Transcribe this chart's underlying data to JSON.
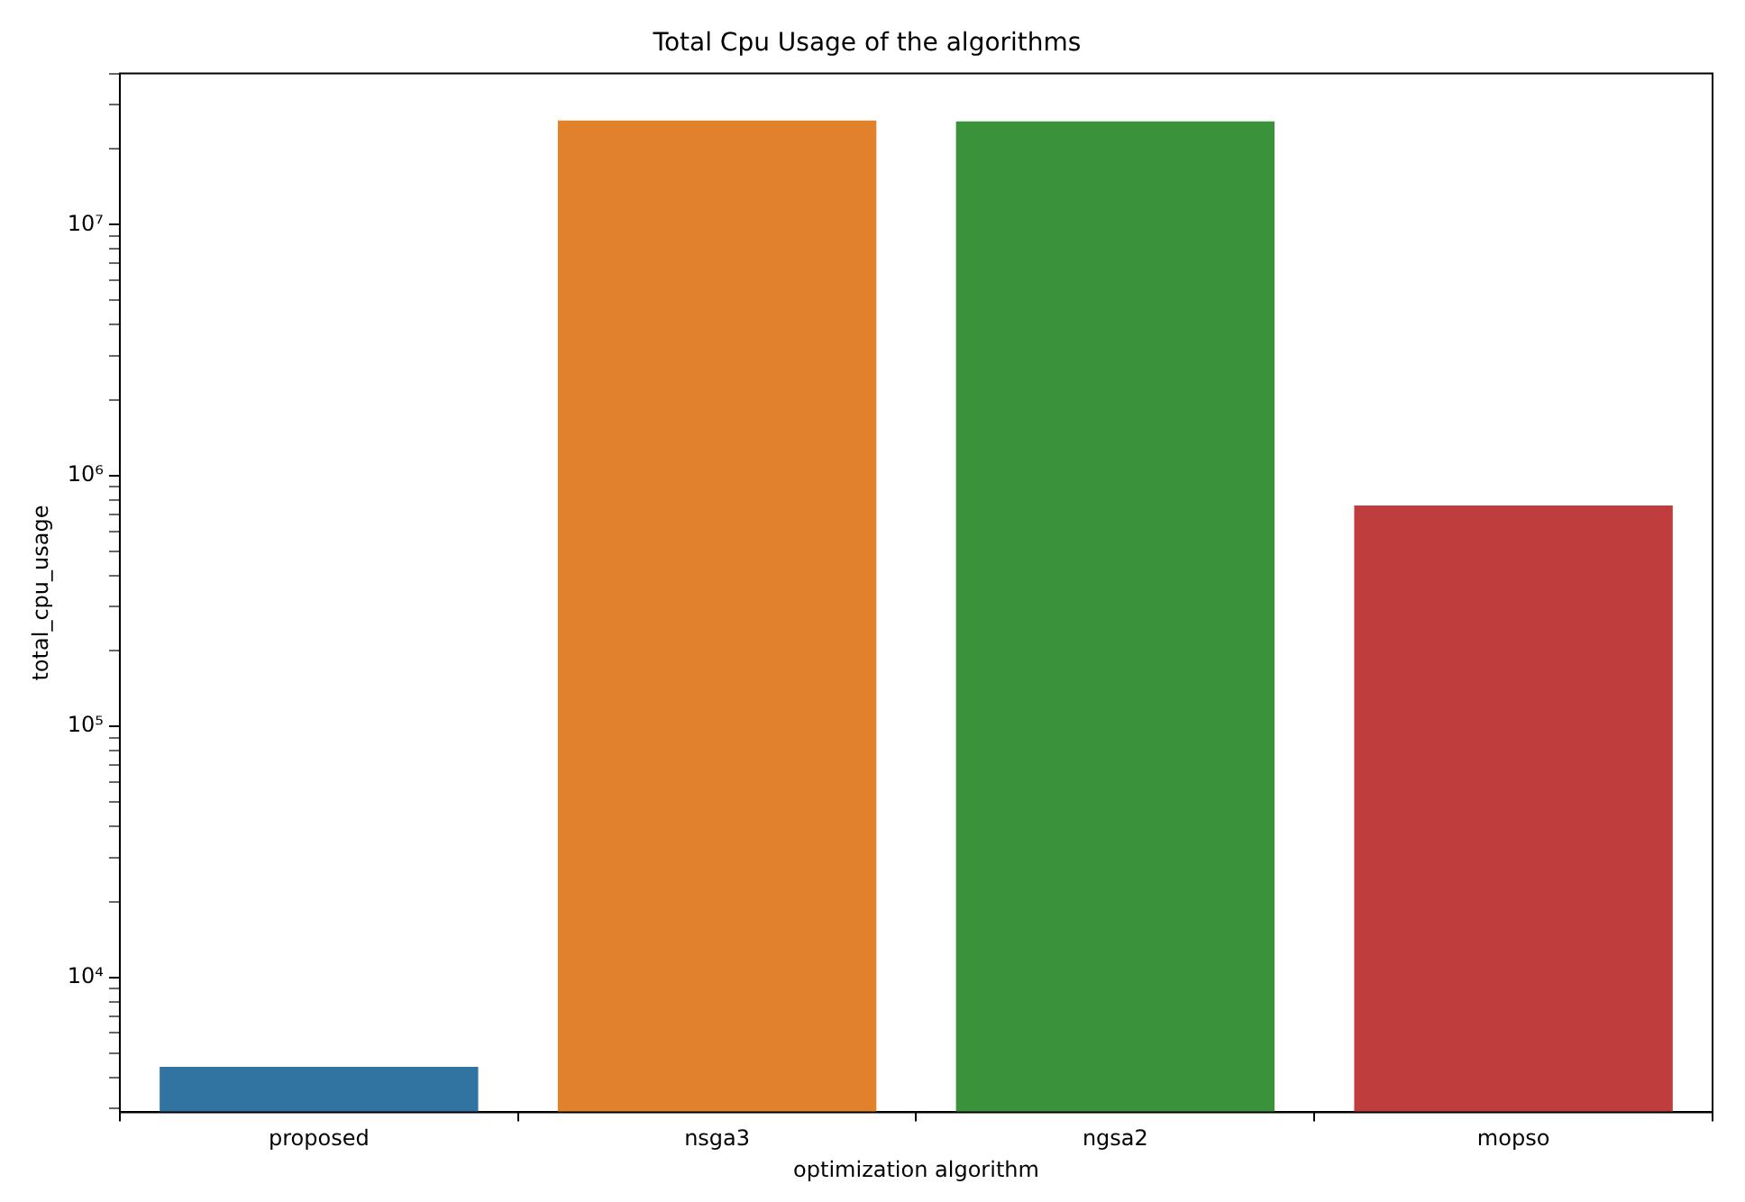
{
  "chart_data": {
    "type": "bar",
    "title": "Total Cpu Usage of the algorithms",
    "xlabel": "optimization algorithm",
    "ylabel": "total_cpu_usage",
    "categories": [
      "proposed",
      "nsga3",
      "ngsa2",
      "mopso"
    ],
    "values": [
      4400,
      26000000,
      25800000,
      760000
    ],
    "colors": [
      "#3274a1",
      "#e1812c",
      "#3a923a",
      "#c03d3e"
    ],
    "log": "y",
    "ylim": [
      2900,
      40000000
    ],
    "yticks": [
      {
        "value": 3000,
        "label": null
      },
      {
        "value": 4000,
        "label": null
      },
      {
        "value": 5000,
        "label": null
      },
      {
        "value": 6000,
        "label": null
      },
      {
        "value": 7000,
        "label": null
      },
      {
        "value": 8000,
        "label": null
      },
      {
        "value": 9000,
        "label": null
      },
      {
        "value": 10000,
        "label": "10⁴"
      },
      {
        "value": 20000,
        "label": null
      },
      {
        "value": 30000,
        "label": null
      },
      {
        "value": 40000,
        "label": null
      },
      {
        "value": 50000,
        "label": null
      },
      {
        "value": 60000,
        "label": null
      },
      {
        "value": 70000,
        "label": null
      },
      {
        "value": 80000,
        "label": null
      },
      {
        "value": 90000,
        "label": null
      },
      {
        "value": 100000,
        "label": "10⁵"
      },
      {
        "value": 200000,
        "label": null
      },
      {
        "value": 300000,
        "label": null
      },
      {
        "value": 400000,
        "label": null
      },
      {
        "value": 500000,
        "label": null
      },
      {
        "value": 600000,
        "label": null
      },
      {
        "value": 700000,
        "label": null
      },
      {
        "value": 800000,
        "label": null
      },
      {
        "value": 900000,
        "label": null
      },
      {
        "value": 1000000,
        "label": "10⁶"
      },
      {
        "value": 2000000,
        "label": null
      },
      {
        "value": 3000000,
        "label": null
      },
      {
        "value": 4000000,
        "label": null
      },
      {
        "value": 5000000,
        "label": null
      },
      {
        "value": 6000000,
        "label": null
      },
      {
        "value": 7000000,
        "label": null
      },
      {
        "value": 8000000,
        "label": null
      },
      {
        "value": 9000000,
        "label": null
      },
      {
        "value": 10000000,
        "label": "10⁷"
      },
      {
        "value": 20000000,
        "label": null
      },
      {
        "value": 30000000,
        "label": null
      },
      {
        "value": 40000000,
        "label": null
      }
    ],
    "grid": false
  }
}
